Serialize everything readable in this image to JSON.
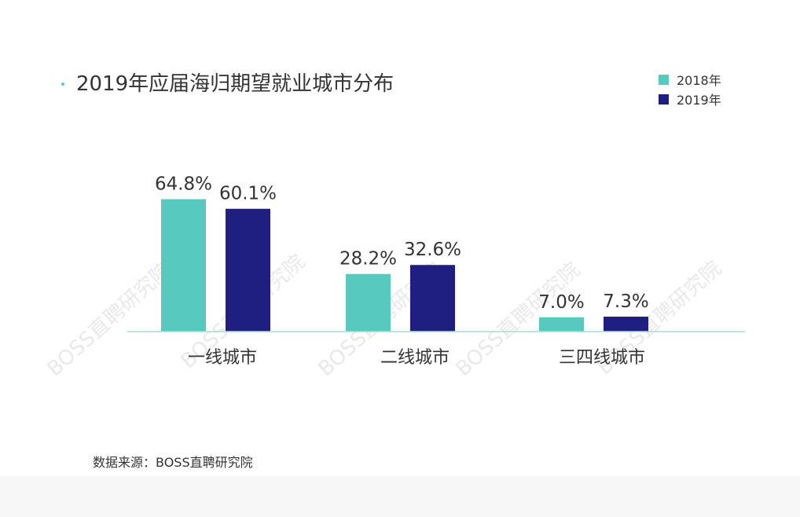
{
  "title": "2019年应届海归期望就业城市分布",
  "source": "数据来源：BOSS直聘研究院",
  "watermark": "BOSS直聘研究院",
  "colors": {
    "series_2018": "#57c9bf",
    "series_2019": "#1f1f82",
    "axis": "#a8dcd7",
    "text": "#333333"
  },
  "chart_data": {
    "type": "bar",
    "title": "2019年应届海归期望就业城市分布",
    "categories": [
      "一线城市",
      "二线城市",
      "三四线城市"
    ],
    "series": [
      {
        "name": "2018年",
        "values": [
          64.8,
          28.2,
          7.0
        ],
        "labels": [
          "64.8%",
          "28.2%",
          "7.0%"
        ]
      },
      {
        "name": "2019年",
        "values": [
          60.1,
          32.6,
          7.3
        ],
        "labels": [
          "60.1%",
          "32.6%",
          "7.3%"
        ]
      }
    ],
    "xlabel": "",
    "ylabel": "",
    "legend_position": "top-right",
    "grid": false
  }
}
